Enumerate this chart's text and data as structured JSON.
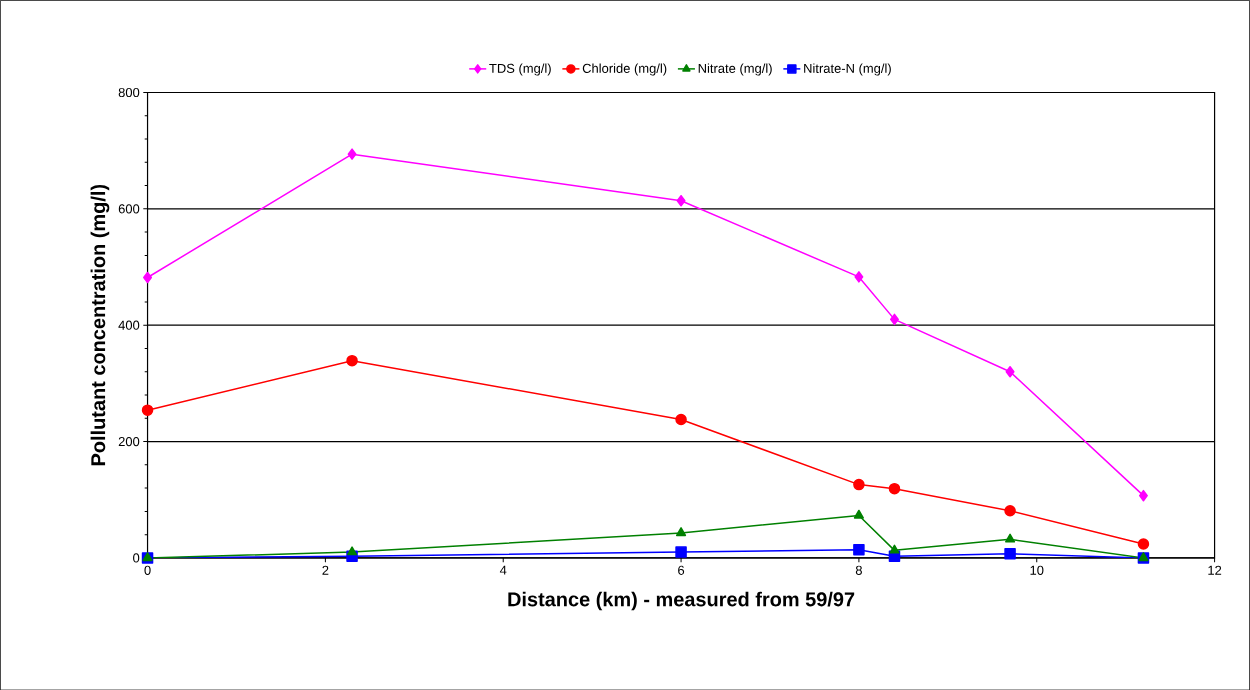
{
  "chart_data": {
    "type": "line",
    "xlabel": "Distance (km) - measured from 59/97",
    "ylabel": "Pollutant concentration (mg/l)",
    "xlim": [
      0,
      12
    ],
    "xticks": [
      0,
      2,
      4,
      6,
      8,
      10,
      12
    ],
    "ylim": [
      0,
      800
    ],
    "yticks": [
      0,
      200,
      400,
      600,
      800
    ],
    "grid": "y",
    "legend": "top",
    "x": [
      0,
      2.3,
      6,
      8,
      8.4,
      9.7,
      11.2
    ],
    "series": [
      {
        "name": "TDS (mg/l)",
        "color": "#ff00ff",
        "marker": "diamond",
        "values": [
          482,
          694,
          614,
          483,
          410,
          320,
          107
        ]
      },
      {
        "name": "Chloride (mg/l)",
        "color": "#ff0000",
        "marker": "circle",
        "values": [
          254,
          339,
          238,
          126,
          119,
          81,
          24
        ]
      },
      {
        "name": "Nitrate (mg/l)",
        "color": "#008000",
        "marker": "triangle",
        "values": [
          0,
          10,
          43,
          73,
          13,
          32,
          0
        ]
      },
      {
        "name": "Nitrate-N (mg/l)",
        "color": "#0000ff",
        "marker": "square",
        "values": [
          0,
          3,
          10,
          14,
          3,
          7,
          0
        ]
      }
    ]
  }
}
